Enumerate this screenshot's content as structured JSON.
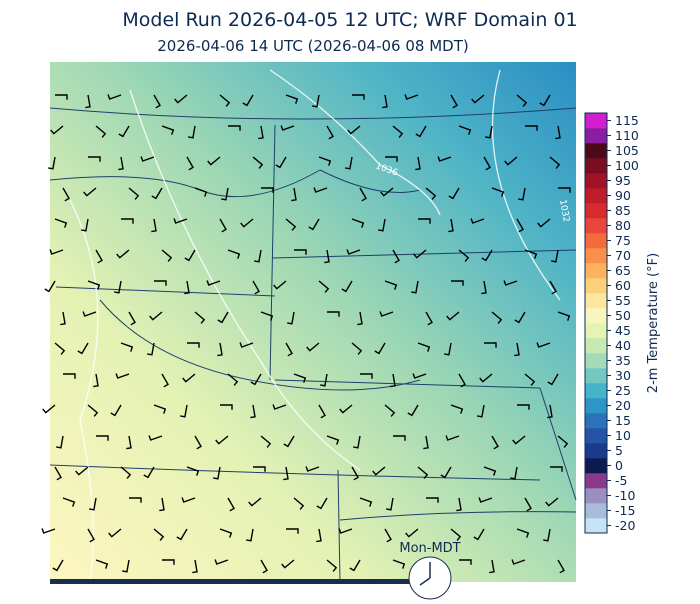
{
  "header": {
    "title": "Model Run 2026-04-05 12 UTC; WRF Domain 01",
    "subtitle": "2026-04-06 14 UTC  (2026-04-06 08 MDT)"
  },
  "map": {
    "contour_labels": [
      "1036",
      "1032"
    ]
  },
  "colorbar": {
    "label": "2-m Temperature (°F)",
    "ticks": [
      -20,
      -15,
      -10,
      -5,
      0,
      5,
      10,
      15,
      20,
      25,
      30,
      35,
      40,
      45,
      50,
      55,
      60,
      65,
      70,
      75,
      80,
      85,
      90,
      95,
      100,
      105,
      110,
      115
    ],
    "colors": [
      "#c6e4f5",
      "#a8bcd9",
      "#9a8fc0",
      "#8a3a8a",
      "#0d1a4f",
      "#1a3a8c",
      "#2354a8",
      "#2b72b8",
      "#2e96c4",
      "#47b3c8",
      "#73c9c2",
      "#a3dab8",
      "#c8e9b2",
      "#e6f4b3",
      "#f8f6bf",
      "#fde7a0",
      "#fdd07d",
      "#fcb35e",
      "#f98f4a",
      "#f36b3d",
      "#e8463a",
      "#d92b2f",
      "#c01d2a",
      "#a01326",
      "#7a0d22",
      "#4a0a1a",
      "#8a1ea0",
      "#d01ed0"
    ]
  },
  "clock": {
    "label": "Mon-MDT"
  }
}
